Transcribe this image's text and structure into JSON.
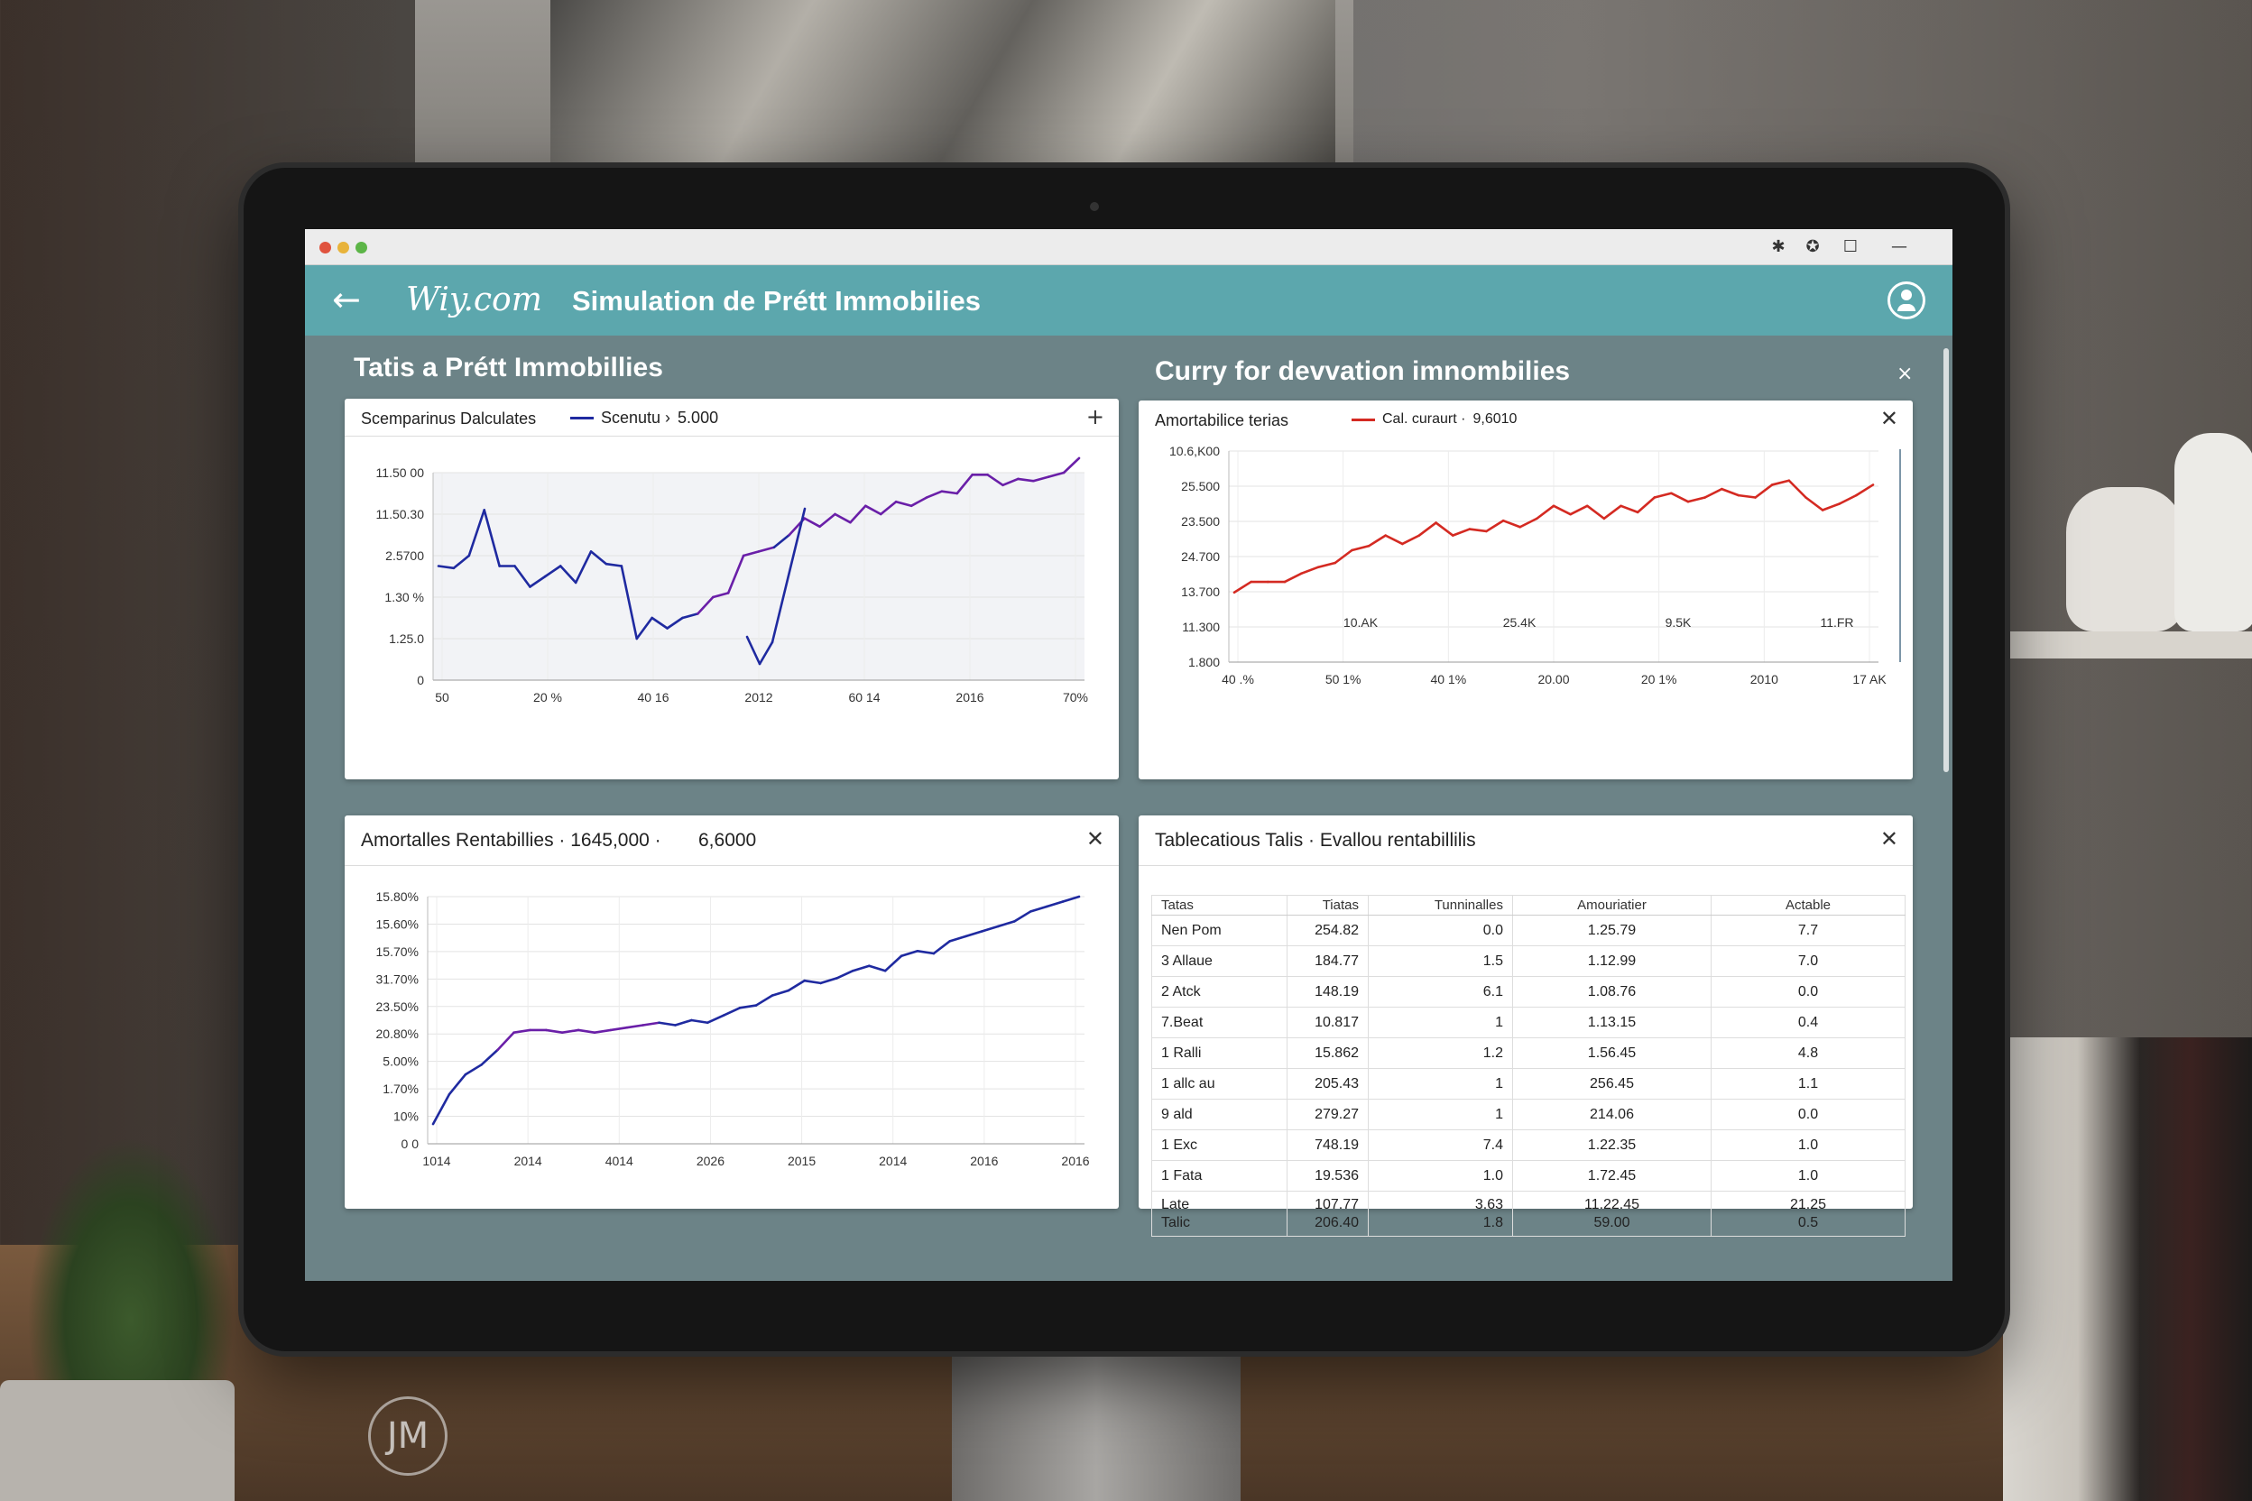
{
  "window": {
    "dots": [
      "#e0533e",
      "#e8b33a",
      "#5cb547"
    ],
    "controls": [
      "✱",
      "✪",
      "☐",
      "—"
    ]
  },
  "appbar": {
    "back_icon": "←",
    "brand": "Wiy.com",
    "title": "Simulation de Prétt Immobilies",
    "user_icon": "user-circle-icon"
  },
  "sections": {
    "left_title": "Tatis a Prétt Immobillies",
    "right_title": "Curry for devvation imnombilies",
    "right_close": "×"
  },
  "panel1": {
    "title": "Scemparinus Dalculates",
    "legend_label": "Scenutu ›",
    "legend_value": "5.000",
    "action_icon": "+",
    "color_a": "#1f2aa0",
    "color_b": "#6a1fa8",
    "y_ticks": [
      "11.50 00",
      "11.50.30",
      "2.5700",
      "1.30 %",
      "1.25.0",
      "0"
    ],
    "x_ticks": [
      "50",
      "20 %",
      "40 16",
      "2012",
      "60 14",
      "2016",
      "70%"
    ]
  },
  "panel2": {
    "title": "Amortabilice terias",
    "legend_label": "Cal. curaurt ·",
    "legend_value": "9,6010",
    "close_icon": "✕",
    "color": "#d42a22",
    "y_ticks": [
      "10.6,K00",
      "25.500",
      "23.500",
      "24.700",
      "13.700",
      "11.300",
      "1.800"
    ],
    "x_ticks_top": [
      "10.AK",
      "25.4K",
      "9.5K",
      "11.FR"
    ],
    "x_ticks": [
      "40 .%",
      "50 1%",
      "40 1%",
      "20.00",
      "20 1%",
      "2010",
      "17 AK"
    ]
  },
  "panel3": {
    "title": "Amortalles Rentabillies · 1645,000 ·",
    "title_value": "6,6000",
    "close_icon": "✕",
    "color_a": "#1f2aa0",
    "color_b": "#6a1fa8",
    "y_ticks": [
      "15.80%",
      "15.60%",
      "15.70%",
      "31.70%",
      "23.50%",
      "20.80%",
      "5.00%",
      "1.70%",
      "10%",
      "0 0"
    ],
    "x_ticks": [
      "1014",
      "2014",
      "4014",
      "2026",
      "2015",
      "2014",
      "2016",
      "2016"
    ]
  },
  "panel4": {
    "title": "Tablecatious Talis · Evallou rentabillilis",
    "close_icon": "✕",
    "columns": [
      "Tatas",
      "Tiatas",
      "Tunninalles",
      "Amouriatier",
      "Actable"
    ],
    "rows": [
      [
        "Nen Pom",
        "254.82",
        "0.0",
        "1.25.79",
        "7.7"
      ],
      [
        "3 Allaue",
        "184.77",
        "1.5",
        "1.12.99",
        "7.0"
      ],
      [
        "2 Atck",
        "148.19",
        "6.1",
        "1.08.76",
        "0.0"
      ],
      [
        "7.Beat",
        "10.817",
        "1",
        "1.13.15",
        "0.4"
      ],
      [
        "1 Ralli",
        "15.862",
        "1.2",
        "1.56.45",
        "4.8"
      ],
      [
        "1 allc au",
        "205.43",
        "1",
        "256.45",
        "1.1"
      ],
      [
        "9 ald",
        "279.27",
        "1",
        "214.06",
        "0.0"
      ],
      [
        "1 Exc",
        "748.19",
        "7.4",
        "1.22.35",
        "1.0"
      ],
      [
        "1 Fata",
        "19.536",
        "1.0",
        "1.72.45",
        "1.0"
      ]
    ],
    "last_row": {
      "c1a": "Late",
      "c1b": "Talic",
      "c2a": "107.77",
      "c2b": "206.40",
      "c3a": "3.63",
      "c3b": "1.8",
      "c4a": "11.22.45",
      "c4b": "59.00",
      "c5a": "21.25",
      "c5b": "0.5"
    }
  },
  "watermark": "JM",
  "chart_data": [
    {
      "type": "line",
      "title": "Scemparinus Dalculates",
      "series": [
        {
          "name": "Scenutu",
          "values": [
            0.55,
            0.54,
            0.6,
            0.82,
            0.55,
            0.55,
            0.45,
            0.5,
            0.55,
            0.47,
            0.62,
            0.56,
            0.55,
            0.2,
            0.3,
            0.25,
            0.3,
            0.32,
            0.4,
            0.42,
            0.6,
            0.62,
            0.64,
            0.7,
            0.78,
            0.74,
            0.8,
            0.76,
            0.84,
            0.8,
            0.86,
            0.84,
            0.88,
            0.91,
            0.9,
            0.99,
            0.99,
            0.94,
            0.97,
            0.96,
            0.98,
            1.0,
            1.07
          ]
        }
      ]
    },
    {
      "type": "line",
      "title": "Amortabilice terias",
      "series": [
        {
          "name": "Cal. curaurt",
          "values": [
            0.33,
            0.38,
            0.38,
            0.38,
            0.42,
            0.45,
            0.47,
            0.53,
            0.55,
            0.6,
            0.56,
            0.6,
            0.66,
            0.6,
            0.63,
            0.62,
            0.67,
            0.64,
            0.68,
            0.74,
            0.7,
            0.74,
            0.68,
            0.74,
            0.71,
            0.78,
            0.8,
            0.76,
            0.78,
            0.82,
            0.79,
            0.78,
            0.84,
            0.86,
            0.78,
            0.72,
            0.75,
            0.79,
            0.84
          ]
        }
      ]
    },
    {
      "type": "line",
      "title": "Amortalles Rentabillies",
      "series": [
        {
          "name": "",
          "values": [
            0.08,
            0.2,
            0.28,
            0.32,
            0.38,
            0.45,
            0.46,
            0.46,
            0.45,
            0.46,
            0.45,
            0.46,
            0.47,
            0.48,
            0.49,
            0.48,
            0.5,
            0.49,
            0.52,
            0.55,
            0.56,
            0.6,
            0.62,
            0.66,
            0.65,
            0.67,
            0.7,
            0.72,
            0.7,
            0.76,
            0.78,
            0.77,
            0.82,
            0.84,
            0.86,
            0.88,
            0.9,
            0.94,
            0.96,
            0.98,
            1.0
          ]
        }
      ]
    }
  ]
}
